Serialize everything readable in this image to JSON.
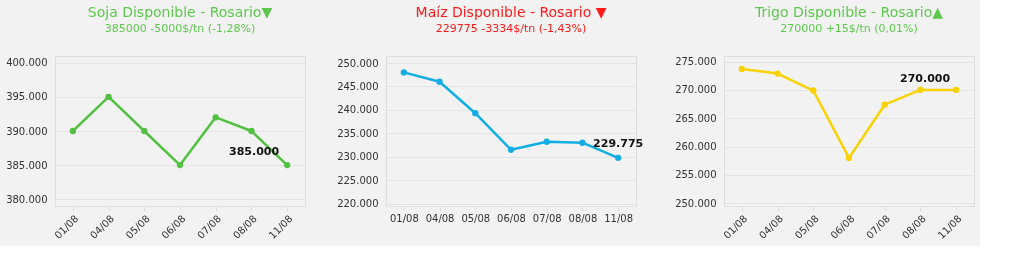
{
  "chart_data": [
    {
      "type": "line",
      "title": "Soja Disponible - Rosario▼",
      "subtitle": "385000 -5000$/tn (-1,28%)",
      "categories": [
        "01/08",
        "04/08",
        "05/08",
        "06/08",
        "07/08",
        "08/08",
        "11/08"
      ],
      "series": [
        {
          "color": "#52c041",
          "values": [
            390000,
            395000,
            390000,
            385000,
            392000,
            390000,
            385000
          ],
          "value_labels": [
            null,
            null,
            null,
            null,
            null,
            null,
            "385.000"
          ]
        }
      ],
      "ylim": [
        379000,
        401000
      ],
      "yticks": [
        {
          "value": 380000,
          "label": "380.000"
        },
        {
          "value": 385000,
          "label": "385.000"
        },
        {
          "value": 390000,
          "label": "390.000"
        },
        {
          "value": 395000,
          "label": "395.000"
        },
        {
          "value": 400000,
          "label": "400.000"
        }
      ],
      "grid": "y",
      "marker": "circle",
      "line_style": "solid"
    },
    {
      "type": "line",
      "title": "Maíz Disponible - Rosario ▼",
      "subtitle": "229775 -3334$/tn (-1,43%)",
      "categories": [
        "01/08",
        "04/08",
        "05/08",
        "06/08",
        "07/08",
        "08/08",
        "11/08"
      ],
      "series": [
        {
          "color": "#12aee3",
          "values": [
            248000,
            246000,
            239300,
            231500,
            233200,
            233000,
            229775
          ],
          "value_labels": [
            null,
            null,
            null,
            null,
            null,
            null,
            "229.775"
          ]
        }
      ],
      "ylim": [
        219500,
        251500
      ],
      "yticks": [
        {
          "value": 220000,
          "label": "220.000"
        },
        {
          "value": 225000,
          "label": "225.000"
        },
        {
          "value": 230000,
          "label": "230.000"
        },
        {
          "value": 235000,
          "label": "235.000"
        },
        {
          "value": 240000,
          "label": "240.000"
        },
        {
          "value": 245000,
          "label": "245.000"
        },
        {
          "value": 250000,
          "label": "250.000"
        }
      ],
      "grid": "y",
      "marker": "circle",
      "line_style": "solid"
    },
    {
      "type": "line",
      "title": "Trigo Disponible - Rosario▲",
      "subtitle": "270000 +15$/tn (0,01%)",
      "categories": [
        "01/08",
        "04/08",
        "05/08",
        "06/08",
        "07/08",
        "08/08",
        "11/08"
      ],
      "series": [
        {
          "color": "#f7d200",
          "values": [
            273700,
            272900,
            269900,
            258000,
            267400,
            270000,
            270000
          ],
          "value_labels": [
            null,
            null,
            null,
            null,
            null,
            null,
            "270.000"
          ]
        }
      ],
      "ylim": [
        249500,
        276000
      ],
      "yticks": [
        {
          "value": 250000,
          "label": "250.000"
        },
        {
          "value": 255000,
          "label": "255.000"
        },
        {
          "value": 260000,
          "label": "260.000"
        },
        {
          "value": 265000,
          "label": "265.000"
        },
        {
          "value": 270000,
          "label": "270.000"
        },
        {
          "value": 275000,
          "label": "275.000"
        }
      ],
      "grid": "y",
      "marker": "circle",
      "line_style": "solid"
    }
  ]
}
